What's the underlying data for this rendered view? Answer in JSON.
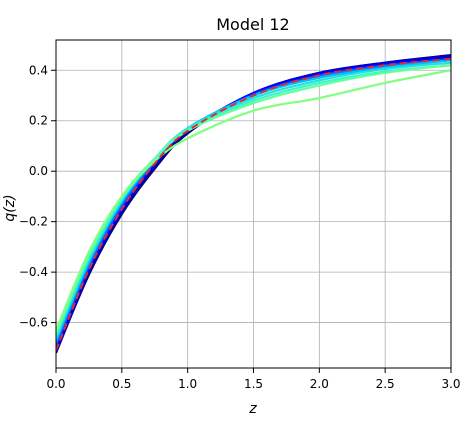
{
  "chart_data": {
    "type": "line",
    "title": "Model 12",
    "xlabel": "z",
    "ylabel": "q(z)",
    "xlim": [
      0.0,
      3.0
    ],
    "ylim": [
      -0.78,
      0.52
    ],
    "xticks": [
      "0.0",
      "0.5",
      "1.0",
      "1.5",
      "2.0",
      "2.5",
      "3.0"
    ],
    "yticks": [
      "0.4",
      "0.2",
      "0.0",
      "−0.2",
      "−0.4",
      "−0.6"
    ],
    "xtick_values": [
      0,
      0.5,
      1.0,
      1.5,
      2.0,
      2.5,
      3.0
    ],
    "ytick_values": [
      0.4,
      0.2,
      0.0,
      -0.2,
      -0.4,
      -0.6
    ],
    "grid": true,
    "x": [
      0.0,
      0.25,
      0.5,
      0.75,
      1.0,
      1.5,
      2.0,
      2.5,
      3.0
    ],
    "series": [
      {
        "color": "#00007f",
        "values": [
          -0.72,
          -0.41,
          -0.17,
          0.01,
          0.15,
          0.31,
          0.39,
          0.43,
          0.46
        ]
      },
      {
        "color": "#0000c8",
        "values": [
          -0.72,
          -0.4,
          -0.16,
          0.02,
          0.16,
          0.31,
          0.39,
          0.43,
          0.455
        ]
      },
      {
        "color": "#0000ff",
        "values": [
          -0.7,
          -0.39,
          -0.15,
          0.03,
          0.16,
          0.31,
          0.385,
          0.425,
          0.45
        ]
      },
      {
        "color": "#0040ff",
        "values": [
          -0.69,
          -0.38,
          -0.14,
          0.035,
          0.165,
          0.305,
          0.38,
          0.42,
          0.445
        ]
      },
      {
        "color": "#0080ff",
        "values": [
          -0.68,
          -0.37,
          -0.13,
          0.04,
          0.17,
          0.3,
          0.375,
          0.415,
          0.44
        ]
      },
      {
        "color": "#00c0ff",
        "values": [
          -0.67,
          -0.36,
          -0.12,
          0.045,
          0.17,
          0.3,
          0.37,
          0.41,
          0.44
        ]
      },
      {
        "color": "#1ee4e0",
        "values": [
          -0.66,
          -0.35,
          -0.115,
          0.05,
          0.17,
          0.29,
          0.36,
          0.405,
          0.43
        ]
      },
      {
        "color": "#3ff5c0",
        "values": [
          -0.65,
          -0.34,
          -0.11,
          0.05,
          0.165,
          0.28,
          0.35,
          0.395,
          0.42
        ]
      },
      {
        "color": "#60ffa0",
        "values": [
          -0.64,
          -0.33,
          -0.1,
          0.05,
          0.16,
          0.27,
          0.34,
          0.39,
          0.42
        ]
      },
      {
        "color": "#80ff80",
        "values": [
          -0.63,
          -0.32,
          -0.1,
          0.04,
          0.13,
          0.24,
          0.29,
          0.35,
          0.4
        ]
      },
      {
        "color": "#e8292a",
        "style": "dashed",
        "values": [
          -0.71,
          -0.39,
          -0.15,
          0.03,
          0.16,
          0.3,
          0.38,
          0.42,
          0.445
        ]
      }
    ]
  }
}
